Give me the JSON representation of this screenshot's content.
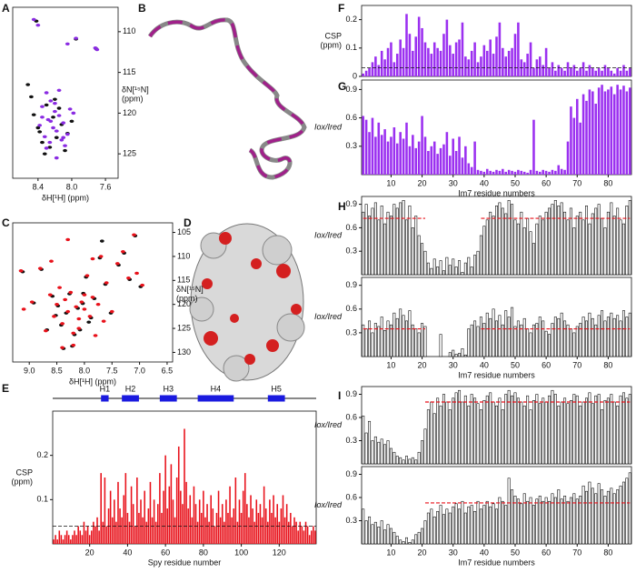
{
  "chart_data": [
    {
      "type": "scatter",
      "panel": "A",
      "xlabel": "δH[¹H] (ppm)",
      "ylabel": [
        "δN[¹⁵N]",
        "(ppm)"
      ],
      "xlim": [
        8.7,
        7.45
      ],
      "ylim": [
        128,
        107
      ],
      "xticks": [
        8.4,
        {
          "value": 8,
          "label": "8.0"
        },
        7.6
      ],
      "yticks": [
        110,
        115,
        120,
        125
      ],
      "series": [
        {
          "name": null,
          "color": "#111111",
          "x": [
            8.42,
            7.95,
            7.71,
            8.52,
            8.48,
            8.3,
            8.22,
            8.12,
            8.4,
            8.05,
            8.18,
            8.35,
            8.26,
            8.0,
            8.45,
            8.15,
            8.32,
            8.08,
            8.38,
            8.2
          ],
          "values": [
            108.7,
            110.9,
            112.1,
            116.5,
            118.0,
            119.0,
            120.5,
            121.4,
            121.8,
            122.5,
            123.0,
            123.6,
            124.2,
            121.0,
            120.2,
            119.4,
            125.0,
            124.6,
            122.3,
            118.3
          ]
        },
        {
          "name": null,
          "color": "#8a2be2",
          "x": [
            8.45,
            8.4,
            7.95,
            8.05,
            7.72,
            7.7,
            8.3,
            8.25,
            8.35,
            8.2,
            8.15,
            8.28,
            8.1,
            8.38,
            8.22,
            8.18,
            8.05,
            8.32,
            8.12,
            8.26,
            8.08,
            8.3,
            8.2,
            8.15,
            8.02,
            8.25,
            7.98,
            8.1,
            8.35,
            8.18
          ],
          "values": [
            108.5,
            109.2,
            110.8,
            111.5,
            112.0,
            112.2,
            117.5,
            118.5,
            119.2,
            119.8,
            120.3,
            120.8,
            121.2,
            121.5,
            121.8,
            122.2,
            122.6,
            122.9,
            123.3,
            123.6,
            124.0,
            124.3,
            118.8,
            117.2,
            119.5,
            121.0,
            120.0,
            123.0,
            120.5,
            125.5
          ]
        }
      ]
    },
    {
      "type": "image",
      "panel": "B"
    },
    {
      "type": "scatter",
      "panel": "C",
      "xlabel": "δH[¹H] (ppm)",
      "ylabel": [
        "δN[¹⁵N]",
        "(ppm)"
      ],
      "xlim": [
        9.3,
        6.4
      ],
      "ylim": [
        132,
        103
      ],
      "xticks": [
        {
          "value": 9,
          "label": "9.0"
        },
        8.5,
        {
          "value": 8,
          "label": "8.0"
        },
        7.5,
        {
          "value": 7,
          "label": "7.0"
        },
        6.5
      ],
      "yticks": [
        105,
        110,
        115,
        120,
        125,
        130
      ],
      "series": [
        {
          "name": null,
          "color": "#111111",
          "x": [
            9.12,
            8.92,
            8.78,
            8.68,
            8.58,
            8.48,
            8.42,
            8.33,
            8.27,
            8.18,
            8.12,
            8.03,
            7.97,
            7.88,
            7.82,
            7.72,
            7.62,
            7.52,
            7.38,
            7.28,
            7.18,
            7.08,
            6.98,
            8.52,
            8.22,
            8.02,
            7.92,
            7.68,
            8.38,
            8.08
          ],
          "values": [
            113.2,
            119.7,
            112.7,
            125.3,
            118.3,
            120.3,
            124.3,
            121.8,
            117.8,
            126.3,
            120.8,
            119.8,
            114.3,
            122.8,
            118.8,
            110.3,
            115.8,
            121.8,
            111.8,
            109.3,
            114.8,
            105.7,
            116.3,
            122.3,
            128.7,
            117.7,
            123.7,
            106.8,
            129.2,
            125.3
          ]
        },
        {
          "name": null,
          "color": "#e8111a",
          "x": [
            9.15,
            9.1,
            8.95,
            8.8,
            8.7,
            8.62,
            8.55,
            8.5,
            8.45,
            8.4,
            8.35,
            8.3,
            8.25,
            8.2,
            8.15,
            8.1,
            8.05,
            8.0,
            7.95,
            7.9,
            7.85,
            7.8,
            7.75,
            7.7,
            7.6,
            7.5,
            7.4,
            7.3,
            7.2,
            7.1,
            7.05,
            6.95,
            8.6,
            8.4,
            8.2,
            8.0,
            7.85,
            7.65,
            8.3,
            8.1
          ],
          "values": [
            113.0,
            121.0,
            119.5,
            112.5,
            125.5,
            118.0,
            122.5,
            120.0,
            116.5,
            124.0,
            119.0,
            121.5,
            117.5,
            126.0,
            120.5,
            123.0,
            119.5,
            121.0,
            114.0,
            122.5,
            118.5,
            126.5,
            120.0,
            110.0,
            115.5,
            121.5,
            111.5,
            109.0,
            114.5,
            105.5,
            113.5,
            116.0,
            111.0,
            129.0,
            128.5,
            118.0,
            110.5,
            123.5,
            106.5,
            125.0
          ]
        }
      ]
    },
    {
      "type": "image",
      "panel": "D"
    },
    {
      "type": "bar",
      "panel": "E",
      "style": "filled",
      "color": "#e8111a",
      "ylabel": [
        "CSP",
        "(ppm)"
      ],
      "xlabel": "Spy residue number",
      "xlim": [
        0.5,
        139.5
      ],
      "ylim": [
        0,
        0.3
      ],
      "xticks": [
        20,
        40,
        60,
        80,
        100,
        120
      ],
      "yticks": [
        0.1,
        0.2
      ],
      "reference_lines": [
        {
          "value": 0.04
        }
      ],
      "regions": [
        {
          "label": "H1",
          "start": 26,
          "end": 30
        },
        {
          "label": "H2",
          "start": 37,
          "end": 46
        },
        {
          "label": "H3",
          "start": 57,
          "end": 66
        },
        {
          "label": "H4",
          "start": 77,
          "end": 96
        },
        {
          "label": "H5",
          "start": 114,
          "end": 123
        }
      ],
      "region_color": "#1a1adf",
      "values": [
        0.01,
        0.02,
        0.01,
        0.03,
        0.02,
        0.01,
        0.02,
        0.03,
        0.02,
        0.01,
        0.02,
        0.03,
        0.02,
        0.04,
        0.03,
        0.02,
        0.05,
        0.03,
        0.04,
        0.02,
        0.03,
        0.05,
        0.04,
        0.06,
        0.03,
        0.16,
        0.05,
        0.15,
        0.04,
        0.08,
        0.12,
        0.06,
        0.1,
        0.05,
        0.14,
        0.08,
        0.06,
        0.11,
        0.16,
        0.07,
        0.05,
        0.13,
        0.09,
        0.04,
        0.15,
        0.07,
        0.1,
        0.06,
        0.12,
        0.05,
        0.08,
        0.14,
        0.06,
        0.1,
        0.05,
        0.09,
        0.16,
        0.07,
        0.12,
        0.2,
        0.08,
        0.13,
        0.18,
        0.1,
        0.06,
        0.15,
        0.22,
        0.12,
        0.09,
        0.26,
        0.14,
        0.08,
        0.11,
        0.06,
        0.13,
        0.09,
        0.05,
        0.1,
        0.07,
        0.12,
        0.06,
        0.09,
        0.05,
        0.11,
        0.08,
        0.04,
        0.07,
        0.12,
        0.06,
        0.09,
        0.05,
        0.1,
        0.07,
        0.13,
        0.06,
        0.08,
        0.15,
        0.05,
        0.1,
        0.07,
        0.12,
        0.16,
        0.09,
        0.06,
        0.11,
        0.08,
        0.05,
        0.1,
        0.07,
        0.09,
        0.06,
        0.13,
        0.08,
        0.05,
        0.1,
        0.07,
        0.11,
        0.06,
        0.09,
        0.05,
        0.08,
        0.11,
        0.06,
        0.09,
        0.05,
        0.07,
        0.04,
        0.06,
        0.05,
        0.03,
        0.05,
        0.04,
        0.03,
        0.05,
        0.04,
        0.02,
        0.03,
        0.04,
        0.03
      ]
    },
    {
      "type": "bar",
      "panel": "F",
      "style": "filled",
      "color": "#9b30f0",
      "ylabel": [
        "CSP",
        "(ppm)"
      ],
      "xlim": [
        0.5,
        87.5
      ],
      "ylim": [
        0,
        0.25
      ],
      "yticks": [
        0,
        0.1,
        0.2
      ],
      "reference_lines": [
        {
          "value": 0.03
        }
      ],
      "values": [
        0.01,
        0.02,
        0.03,
        0.05,
        0.07,
        0.04,
        0.09,
        0.06,
        0.1,
        0.12,
        0.05,
        0.08,
        0.13,
        0.1,
        0.22,
        0.15,
        0.09,
        0.14,
        0.21,
        0.17,
        0.12,
        0.1,
        0.08,
        0.12,
        0.1,
        0.09,
        0.15,
        0.2,
        0.11,
        0.08,
        0.12,
        0.13,
        0.19,
        0.07,
        0.06,
        0.09,
        0.12,
        0.05,
        0.07,
        0.11,
        0.09,
        0.13,
        0.08,
        0.14,
        0.19,
        0.1,
        0.07,
        0.09,
        0.1,
        0.15,
        0.19,
        0.06,
        0.05,
        0.08,
        0.12,
        0.03,
        0.06,
        0.07,
        0.04,
        0.1,
        0.03,
        0.05,
        0.02,
        0.04,
        0.03,
        0.02,
        0.05,
        0.03,
        0.04,
        0.02,
        0.03,
        0.05,
        0.02,
        0.04,
        0.03,
        0.02,
        0.03,
        0.02,
        0.04,
        0.03,
        0.02,
        0.01,
        0.03,
        0.02,
        0.04,
        0.02,
        0.03
      ]
    },
    {
      "type": "bar",
      "panel": "G",
      "style": "filled",
      "color": "#9b30f0",
      "ylabel": [
        "Iox/Ired"
      ],
      "xlabel": "Im7 residue numbers",
      "xlim": [
        0.5,
        87.5
      ],
      "ylim": [
        0,
        1
      ],
      "yticks": [
        0.3,
        0.6,
        0.9
      ],
      "xticks": [
        10,
        20,
        30,
        40,
        50,
        60,
        70,
        80
      ],
      "values": [
        0.62,
        0.58,
        0.45,
        0.6,
        0.4,
        0.55,
        0.42,
        0.48,
        0.35,
        0.4,
        0.5,
        0.33,
        0.45,
        0.38,
        0.55,
        0.3,
        0.42,
        0.28,
        0.35,
        0.62,
        0.4,
        0.25,
        0.3,
        0.35,
        0.22,
        0.28,
        0.32,
        0.45,
        0.2,
        0.38,
        0.25,
        0.4,
        0.18,
        0.3,
        0.12,
        0.08,
        0.35,
        0.05,
        0.04,
        0.03,
        0.06,
        0.04,
        0.03,
        0.05,
        0.04,
        0.06,
        0.03,
        0.05,
        0.04,
        0.03,
        0.05,
        0.04,
        0.03,
        0.02,
        0.05,
        0.58,
        0.04,
        0.03,
        0.05,
        0.04,
        0.03,
        0.05,
        0.04,
        0.1,
        0.06,
        0.05,
        0.35,
        0.72,
        0.6,
        0.8,
        0.55,
        0.85,
        0.78,
        0.9,
        0.88,
        0.75,
        0.92,
        0.95,
        0.88,
        0.9,
        0.93,
        0.85,
        0.95,
        0.9,
        0.94,
        0.88,
        0.92
      ]
    },
    {
      "type": "bar",
      "panel": "H",
      "style": "outline",
      "color": "#111111",
      "ylabel": [
        "Iox/Ired"
      ],
      "xlim": [
        0.5,
        87.5
      ],
      "ylim": [
        0,
        1
      ],
      "yticks": [
        0.3,
        0.6,
        0.9
      ],
      "reference_lines": [
        {
          "value": 0.72,
          "start": 1,
          "end": 21
        },
        {
          "value": 0.72,
          "start": 39,
          "end": 87
        }
      ],
      "reference_color": "#e8111a",
      "values": [
        0.8,
        0.9,
        0.75,
        0.85,
        0.92,
        0.7,
        0.88,
        0.65,
        0.8,
        0.75,
        0.9,
        0.85,
        0.92,
        0.95,
        0.7,
        0.88,
        0.6,
        0.75,
        0.5,
        0.4,
        0.3,
        0.15,
        0.08,
        0.2,
        0.1,
        0.18,
        0.05,
        0.22,
        0.12,
        0.2,
        0.1,
        0.18,
        0.03,
        0.15,
        0.22,
        0.1,
        0.25,
        0.3,
        0.5,
        0.62,
        0.7,
        0.8,
        0.75,
        0.88,
        0.92,
        0.85,
        0.78,
        0.95,
        0.9,
        0.7,
        0.65,
        0.8,
        0.6,
        0.72,
        0.55,
        0.4,
        0.65,
        0.75,
        0.7,
        0.8,
        0.85,
        0.9,
        0.95,
        0.88,
        0.92,
        0.8,
        0.7,
        0.85,
        0.6,
        0.75,
        0.8,
        0.7,
        0.88,
        0.65,
        0.78,
        0.85,
        0.9,
        0.72,
        0.6,
        0.8,
        0.92,
        0.75,
        0.85,
        0.7,
        0.65,
        0.88,
        0.95
      ]
    },
    {
      "type": "bar",
      "style": "outline",
      "color": "#111111",
      "ylabel": [
        "Iox/Ired"
      ],
      "xlabel": "Im7 residue numbers",
      "xlim": [
        0.5,
        87.5
      ],
      "ylim": [
        0,
        1
      ],
      "yticks": [
        0.3,
        0.6,
        0.9
      ],
      "xticks": [
        10,
        20,
        30,
        40,
        50,
        60,
        70,
        80
      ],
      "reference_lines": [
        {
          "value": 0.35,
          "start": 1,
          "end": 21
        },
        {
          "value": 0.35,
          "start": 39,
          "end": 87
        }
      ],
      "reference_color": "#e8111a",
      "values": [
        0.4,
        0.35,
        0.45,
        0.3,
        0.42,
        0.38,
        0.5,
        0.33,
        0.45,
        0.4,
        0.55,
        0.48,
        0.6,
        0.52,
        0.45,
        0.58,
        0.4,
        0.35,
        0.3,
        0.42,
        0.38,
        null,
        null,
        null,
        null,
        0.28,
        null,
        null,
        0.05,
        0.08,
        0.03,
        0.04,
        0.1,
        0.02,
        0.35,
        0.4,
        0.45,
        0.38,
        0.5,
        0.42,
        0.55,
        0.48,
        0.6,
        0.45,
        0.52,
        0.4,
        0.58,
        0.5,
        0.62,
        0.38,
        0.45,
        0.4,
        0.48,
        0.35,
        0.3,
        0.4,
        0.42,
        0.5,
        0.45,
        0.32,
        0.28,
        0.42,
        0.5,
        0.48,
        0.55,
        0.45,
        0.4,
        0.35,
        0.3,
        0.38,
        0.42,
        0.5,
        0.45,
        0.55,
        0.48,
        0.4,
        0.52,
        0.58,
        0.45,
        0.5,
        0.55,
        0.48,
        0.52,
        0.45,
        0.58,
        0.5,
        0.55
      ]
    },
    {
      "type": "bar",
      "panel": "I",
      "style": "outline",
      "color": "#111111",
      "ylabel": [
        "Iox/Ired"
      ],
      "xlim": [
        0.5,
        87.5
      ],
      "ylim": [
        0,
        1
      ],
      "yticks": [
        0.3,
        0.6,
        0.9
      ],
      "reference_lines": [
        {
          "value": 0.8,
          "start": 21,
          "end": 87
        }
      ],
      "reference_color": "#e8111a",
      "values": [
        0.62,
        0.4,
        0.55,
        0.3,
        0.35,
        0.28,
        0.32,
        0.25,
        0.3,
        0.2,
        0.15,
        0.1,
        0.08,
        0.05,
        0.1,
        0.06,
        0.08,
        0.05,
        0.15,
        0.3,
        0.45,
        0.7,
        0.8,
        0.65,
        0.85,
        0.75,
        0.9,
        0.8,
        0.7,
        0.85,
        0.92,
        0.95,
        0.8,
        0.88,
        0.75,
        0.9,
        0.85,
        0.78,
        0.7,
        0.82,
        0.88,
        0.92,
        0.8,
        0.75,
        0.85,
        0.7,
        0.9,
        0.95,
        0.88,
        0.92,
        0.85,
        0.8,
        0.75,
        0.88,
        0.7,
        0.82,
        0.9,
        0.78,
        0.85,
        0.8,
        0.88,
        0.95,
        0.9,
        0.75,
        0.8,
        0.85,
        0.78,
        0.82,
        0.9,
        0.88,
        0.75,
        0.8,
        0.85,
        0.92,
        0.78,
        0.88,
        0.9,
        0.7,
        0.82,
        0.85,
        0.9,
        0.8,
        0.75,
        0.88,
        0.92,
        0.85,
        0.9
      ]
    },
    {
      "type": "bar",
      "style": "outline",
      "color": "#111111",
      "ylabel": [
        "Iox/Ired"
      ],
      "xlabel": "Im7 residue numbers",
      "xlim": [
        0.5,
        87.5
      ],
      "ylim": [
        0,
        1
      ],
      "yticks": [
        0.3,
        0.6,
        0.9
      ],
      "xticks": [
        10,
        20,
        30,
        40,
        50,
        60,
        70,
        80
      ],
      "reference_lines": [
        {
          "value": 0.53,
          "start": 21,
          "end": 87
        }
      ],
      "reference_color": "#e8111a",
      "values": [
        0.45,
        0.3,
        0.35,
        0.25,
        0.28,
        0.22,
        0.3,
        0.18,
        0.25,
        0.2,
        0.15,
        0.1,
        0.05,
        0.03,
        0.08,
        0.02,
        0.05,
        0.12,
        0.15,
        0.2,
        0.3,
        0.4,
        0.45,
        0.35,
        0.42,
        0.5,
        0.38,
        0.45,
        0.4,
        0.48,
        0.52,
        0.45,
        0.55,
        0.4,
        0.48,
        0.5,
        0.42,
        0.55,
        0.45,
        0.5,
        0.55,
        0.48,
        0.52,
        0.45,
        0.6,
        0.55,
        0.5,
        0.85,
        0.7,
        0.62,
        0.58,
        0.52,
        0.65,
        0.55,
        0.6,
        0.5,
        0.58,
        0.62,
        0.55,
        0.6,
        0.55,
        0.65,
        0.6,
        0.7,
        0.58,
        0.62,
        0.55,
        0.6,
        0.65,
        0.58,
        0.62,
        0.75,
        0.68,
        0.8,
        0.72,
        0.65,
        0.78,
        0.7,
        0.62,
        0.68,
        0.72,
        0.65,
        0.7,
        0.75,
        0.8,
        0.85,
        0.92
      ]
    }
  ]
}
